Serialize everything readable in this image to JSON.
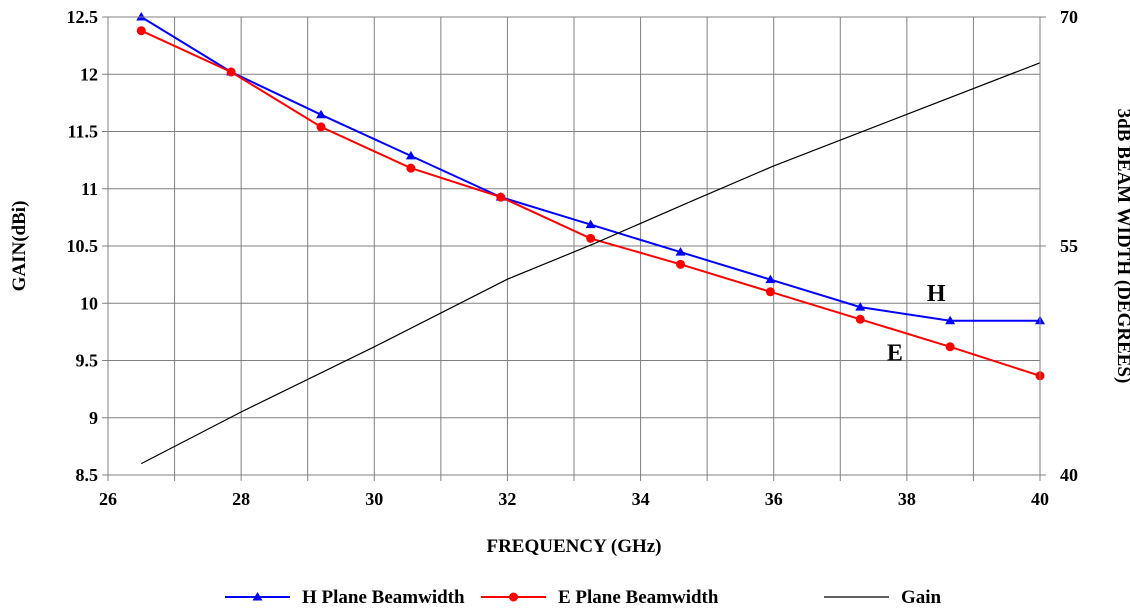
{
  "chart_data": {
    "type": "line",
    "xlabel": "FREQUENCY (GHz)",
    "ylabel": "GAIN(dBi)",
    "y2label": "3dB BEAM WIDTH (DEGREES)",
    "xlim": [
      26,
      40
    ],
    "ylim": [
      8.5,
      12.5
    ],
    "y2lim": [
      40,
      70
    ],
    "x_ticks": [
      26,
      28,
      30,
      32,
      34,
      36,
      38,
      40
    ],
    "y_ticks": [
      8.5,
      9,
      9.5,
      10,
      10.5,
      11,
      11.5,
      12,
      12.5
    ],
    "y2_ticks": [
      40,
      55,
      70
    ],
    "grid": true,
    "legend_position": "bottom",
    "series": [
      {
        "name": "H Plane Beamwidth",
        "axis": "right",
        "color": "#0000ff",
        "marker": "triangle",
        "x": [
          26.5,
          27.85,
          29.2,
          30.55,
          31.9,
          33.25,
          34.6,
          35.95,
          37.3,
          38.65,
          40
        ],
        "values": [
          70.0,
          66.4,
          63.6,
          60.9,
          58.2,
          56.4,
          54.6,
          52.8,
          51.0,
          50.1,
          50.1
        ]
      },
      {
        "name": "E Plane Beamwidth",
        "axis": "right",
        "color": "#ff0000",
        "marker": "circle",
        "x": [
          26.5,
          27.85,
          29.2,
          30.55,
          31.9,
          33.25,
          34.6,
          35.95,
          37.3,
          38.65,
          40
        ],
        "values": [
          69.1,
          66.4,
          62.8,
          60.1,
          58.2,
          55.5,
          53.8,
          52.0,
          50.2,
          48.4,
          46.5
        ]
      },
      {
        "name": "Gain",
        "axis": "left",
        "color": "#000000",
        "marker": "none",
        "x": [
          26.5,
          28,
          30,
          32,
          33.3,
          34.8,
          36,
          38,
          40
        ],
        "values": [
          8.6,
          9.05,
          9.62,
          10.21,
          10.52,
          10.9,
          11.2,
          11.65,
          12.1
        ]
      }
    ],
    "annotations": [
      {
        "text": "H",
        "x": 38.3,
        "y2": 51.4
      },
      {
        "text": "E",
        "x": 37.7,
        "y2": 47.5
      }
    ]
  }
}
